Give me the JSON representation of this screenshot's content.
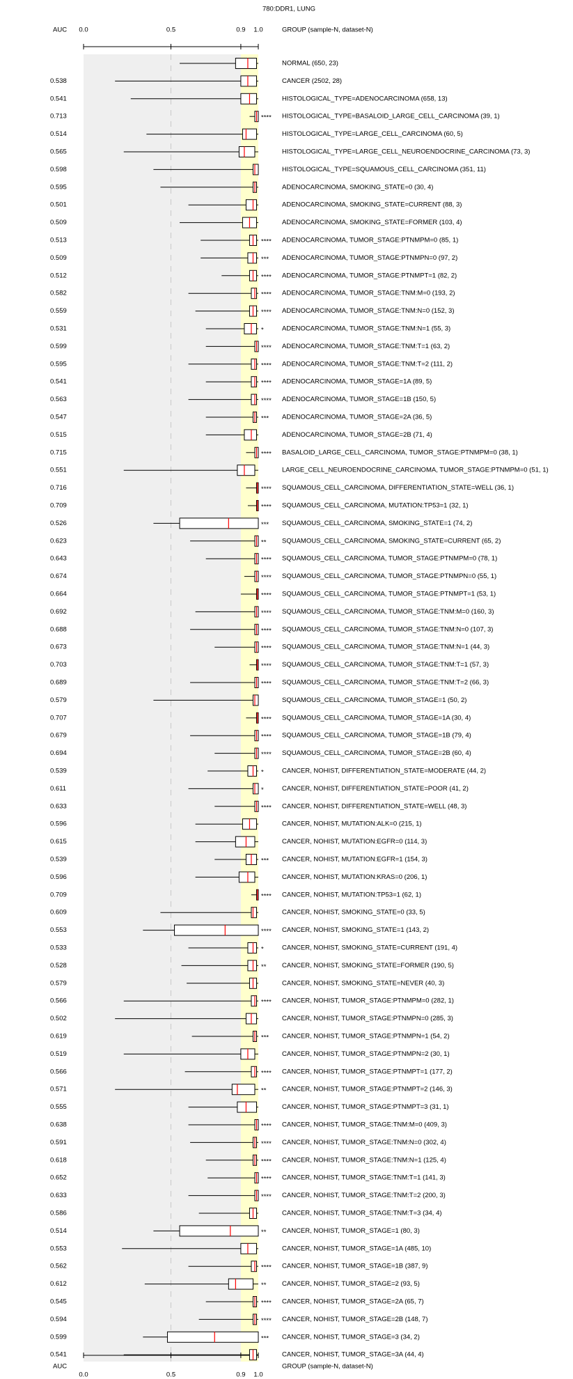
{
  "chart_data": {
    "type": "boxplot",
    "title": "780:DDR1, LUNG",
    "auc_label": "AUC",
    "group_label": "GROUP (sample-N, dataset-N)",
    "xlim": [
      0,
      1
    ],
    "xticks": [
      {
        "value": 0,
        "label": "0.0"
      },
      0.5,
      0.9,
      {
        "value": 1,
        "label": "1.0"
      }
    ],
    "highlight": [
      0.9,
      1
    ],
    "grid_dashed": 0.5,
    "categories": [
      "NORMAL (650, 23)",
      "CANCER (2502, 28)",
      "HISTOLOGICAL_TYPE=ADENOCARCINOMA (658, 13)",
      "HISTOLOGICAL_TYPE=BASALOID_LARGE_CELL_CARCINOMA (39, 1)",
      "HISTOLOGICAL_TYPE=LARGE_CELL_CARCINOMA (60, 5)",
      "HISTOLOGICAL_TYPE=LARGE_CELL_NEUROENDOCRINE_CARCINOMA (73, 3)",
      "HISTOLOGICAL_TYPE=SQUAMOUS_CELL_CARCINOMA (351, 11)",
      "ADENOCARCINOMA, SMOKING_STATE=0 (30, 4)",
      "ADENOCARCINOMA, SMOKING_STATE=CURRENT (88, 3)",
      "ADENOCARCINOMA, SMOKING_STATE=FORMER (103, 4)",
      "ADENOCARCINOMA, TUMOR_STAGE:PTNMPM=0 (85, 1)",
      "ADENOCARCINOMA, TUMOR_STAGE:PTNMPN=0 (97, 2)",
      "ADENOCARCINOMA, TUMOR_STAGE:PTNMPT=1 (82, 2)",
      "ADENOCARCINOMA, TUMOR_STAGE:TNM:M=0 (193, 2)",
      "ADENOCARCINOMA, TUMOR_STAGE:TNM:N=0 (152, 3)",
      "ADENOCARCINOMA, TUMOR_STAGE:TNM:N=1 (55, 3)",
      "ADENOCARCINOMA, TUMOR_STAGE:TNM:T=1 (63, 2)",
      "ADENOCARCINOMA, TUMOR_STAGE:TNM:T=2 (111, 2)",
      "ADENOCARCINOMA, TUMOR_STAGE=1A (89, 5)",
      "ADENOCARCINOMA, TUMOR_STAGE=1B (150, 5)",
      "ADENOCARCINOMA, TUMOR_STAGE=2A (36, 5)",
      "ADENOCARCINOMA, TUMOR_STAGE=2B (71, 4)",
      "BASALOID_LARGE_CELL_CARCINOMA, TUMOR_STAGE:PTNMPM=0 (38, 1)",
      "LARGE_CELL_NEUROENDOCRINE_CARCINOMA, TUMOR_STAGE:PTNMPM=0 (51, 1)",
      "SQUAMOUS_CELL_CARCINOMA, DIFFERENTIATION_STATE=WELL (36, 1)",
      "SQUAMOUS_CELL_CARCINOMA, MUTATION:TP53=1 (32, 1)",
      "SQUAMOUS_CELL_CARCINOMA, SMOKING_STATE=1 (74, 2)",
      "SQUAMOUS_CELL_CARCINOMA, SMOKING_STATE=CURRENT (65, 2)",
      "SQUAMOUS_CELL_CARCINOMA, TUMOR_STAGE:PTNMPM=0 (78, 1)",
      "SQUAMOUS_CELL_CARCINOMA, TUMOR_STAGE:PTNMPN=0 (55, 1)",
      "SQUAMOUS_CELL_CARCINOMA, TUMOR_STAGE:PTNMPT=1 (53, 1)",
      "SQUAMOUS_CELL_CARCINOMA, TUMOR_STAGE:TNM:M=0 (160, 3)",
      "SQUAMOUS_CELL_CARCINOMA, TUMOR_STAGE:TNM:N=0 (107, 3)",
      "SQUAMOUS_CELL_CARCINOMA, TUMOR_STAGE:TNM:N=1 (44, 3)",
      "SQUAMOUS_CELL_CARCINOMA, TUMOR_STAGE:TNM:T=1 (57, 3)",
      "SQUAMOUS_CELL_CARCINOMA, TUMOR_STAGE:TNM:T=2 (66, 3)",
      "SQUAMOUS_CELL_CARCINOMA, TUMOR_STAGE=1 (50, 2)",
      "SQUAMOUS_CELL_CARCINOMA, TUMOR_STAGE=1A (30, 4)",
      "SQUAMOUS_CELL_CARCINOMA, TUMOR_STAGE=1B (79, 4)",
      "SQUAMOUS_CELL_CARCINOMA, TUMOR_STAGE=2B (60, 4)",
      "CANCER, NOHIST, DIFFERENTIATION_STATE=MODERATE (44, 2)",
      "CANCER, NOHIST, DIFFERENTIATION_STATE=POOR (41, 2)",
      "CANCER, NOHIST, DIFFERENTIATION_STATE=WELL (48, 3)",
      "CANCER, NOHIST, MUTATION:ALK=0 (215, 1)",
      "CANCER, NOHIST, MUTATION:EGFR=0 (114, 3)",
      "CANCER, NOHIST, MUTATION:EGFR=1 (154, 3)",
      "CANCER, NOHIST, MUTATION:KRAS=0 (206, 1)",
      "CANCER, NOHIST, MUTATION:TP53=1 (62, 1)",
      "CANCER, NOHIST, SMOKING_STATE=0 (33, 5)",
      "CANCER, NOHIST, SMOKING_STATE=1 (143, 2)",
      "CANCER, NOHIST, SMOKING_STATE=CURRENT (191, 4)",
      "CANCER, NOHIST, SMOKING_STATE=FORMER (190, 5)",
      "CANCER, NOHIST, SMOKING_STATE=NEVER (40, 3)",
      "CANCER, NOHIST, TUMOR_STAGE:PTNMPM=0 (282, 1)",
      "CANCER, NOHIST, TUMOR_STAGE:PTNMPN=0 (285, 3)",
      "CANCER, NOHIST, TUMOR_STAGE:PTNMPN=1 (54, 2)",
      "CANCER, NOHIST, TUMOR_STAGE:PTNMPN=2 (30, 1)",
      "CANCER, NOHIST, TUMOR_STAGE:PTNMPT=1 (177, 2)",
      "CANCER, NOHIST, TUMOR_STAGE:PTNMPT=2 (146, 3)",
      "CANCER, NOHIST, TUMOR_STAGE:PTNMPT=3 (31, 1)",
      "CANCER, NOHIST, TUMOR_STAGE:TNM:M=0 (409, 3)",
      "CANCER, NOHIST, TUMOR_STAGE:TNM:N=0 (302, 4)",
      "CANCER, NOHIST, TUMOR_STAGE:TNM:N=1 (125, 4)",
      "CANCER, NOHIST, TUMOR_STAGE:TNM:T=1 (141, 3)",
      "CANCER, NOHIST, TUMOR_STAGE:TNM:T=2 (200, 3)",
      "CANCER, NOHIST, TUMOR_STAGE:TNM:T=3 (34, 4)",
      "CANCER, NOHIST, TUMOR_STAGE=1 (80, 3)",
      "CANCER, NOHIST, TUMOR_STAGE=1A (485, 10)",
      "CANCER, NOHIST, TUMOR_STAGE=1B (387, 9)",
      "CANCER, NOHIST, TUMOR_STAGE=2 (93, 5)",
      "CANCER, NOHIST, TUMOR_STAGE=2A (65, 7)",
      "CANCER, NOHIST, TUMOR_STAGE=2B (148, 7)",
      "CANCER, NOHIST, TUMOR_STAGE=3 (34, 2)",
      "CANCER, NOHIST, TUMOR_STAGE=3A (44, 4)"
    ],
    "auc": [
      null,
      0.538,
      0.541,
      0.713,
      0.514,
      0.565,
      0.598,
      0.595,
      0.501,
      0.509,
      0.513,
      0.509,
      0.512,
      0.582,
      0.559,
      0.531,
      0.599,
      0.595,
      0.541,
      0.563,
      0.547,
      0.515,
      0.715,
      0.551,
      0.716,
      0.709,
      0.526,
      0.623,
      0.643,
      0.674,
      0.664,
      0.692,
      0.688,
      0.673,
      0.703,
      0.689,
      0.579,
      0.707,
      0.679,
      0.694,
      0.539,
      0.611,
      0.633,
      0.596,
      0.615,
      0.539,
      0.596,
      0.709,
      0.609,
      0.553,
      0.533,
      0.528,
      0.579,
      0.566,
      0.502,
      0.619,
      0.519,
      0.566,
      0.571,
      0.555,
      0.638,
      0.591,
      0.618,
      0.652,
      0.633,
      0.586,
      0.514,
      0.553,
      0.562,
      0.612,
      0.545,
      0.594,
      0.599,
      0.541
    ],
    "significance": [
      null,
      null,
      null,
      "****",
      null,
      null,
      null,
      null,
      null,
      null,
      "****",
      "***",
      "****",
      "****",
      "****",
      "*",
      "****",
      "****",
      "****",
      "****",
      "***",
      null,
      "****",
      null,
      "****",
      "****",
      "***",
      "**",
      "****",
      "****",
      "****",
      "****",
      "****",
      "****",
      "****",
      "****",
      null,
      "****",
      "****",
      "****",
      "*",
      "*",
      "****",
      null,
      null,
      "***",
      null,
      "****",
      null,
      "****",
      "*",
      "**",
      null,
      "****",
      null,
      "***",
      null,
      "****",
      "**",
      null,
      "****",
      "****",
      "****",
      "****",
      "****",
      null,
      "**",
      null,
      "****",
      "**",
      "****",
      "****",
      "***",
      null
    ],
    "colors": [
      "#000000",
      "#000000",
      "#000000",
      "#ff0000",
      "#000000",
      "#000000",
      "#000000",
      "#000000",
      "#000000",
      "#000000",
      "#ff0000",
      "#ff0000",
      "#ff0000",
      "#ff0000",
      "#ff0000",
      "#a52a2a",
      "#ff0000",
      "#ff0000",
      "#ff0000",
      "#ff0000",
      "#ff0000",
      "#000000",
      "#ff0000",
      "#000000",
      "#ff0000",
      "#ff0000",
      "#0000ff",
      "#a52a2a",
      "#ff0000",
      "#ff0000",
      "#ff0000",
      "#ff0000",
      "#ff0000",
      "#ff0000",
      "#ff0000",
      "#ff0000",
      "#000000",
      "#ff0000",
      "#ff0000",
      "#ff0000",
      "#a52a2a",
      "#a52a2a",
      "#ff0000",
      "#000000",
      "#000000",
      "#ff0000",
      "#000000",
      "#ff0000",
      "#000000",
      "#0000ff",
      "#a52a2a",
      "#a52a2a",
      "#000000",
      "#ff0000",
      "#000000",
      "#ff0000",
      "#000000",
      "#ff0000",
      "#000080",
      "#000000",
      "#ff0000",
      "#ff0000",
      "#ff0000",
      "#ff0000",
      "#ff0000",
      "#000000",
      "#000080",
      "#000000",
      "#ff0000",
      "#000080",
      "#ff0000",
      "#ff0000",
      "#0000ff",
      "#000000"
    ],
    "values": [
      [
        0.55,
        0.87,
        0.94,
        0.99,
        1.0
      ],
      [
        0.18,
        0.9,
        0.94,
        0.99,
        1.0
      ],
      [
        0.27,
        0.9,
        0.95,
        0.99,
        1.0
      ],
      [
        0.95,
        0.98,
        0.99,
        1.0,
        1.0
      ],
      [
        0.36,
        0.91,
        0.93,
        0.99,
        1.0
      ],
      [
        0.23,
        0.89,
        0.92,
        0.98,
        1.0
      ],
      [
        0.4,
        0.97,
        0.98,
        1.0,
        1.0
      ],
      [
        0.44,
        0.97,
        0.98,
        0.99,
        1.0
      ],
      [
        0.6,
        0.93,
        0.97,
        0.99,
        1.0
      ],
      [
        0.55,
        0.91,
        0.95,
        0.99,
        1.0
      ],
      [
        0.67,
        0.95,
        0.97,
        0.99,
        1.0
      ],
      [
        0.67,
        0.94,
        0.97,
        0.99,
        1.0
      ],
      [
        0.79,
        0.95,
        0.97,
        0.99,
        1.0
      ],
      [
        0.6,
        0.96,
        0.98,
        0.99,
        1.0
      ],
      [
        0.64,
        0.95,
        0.97,
        0.99,
        1.0
      ],
      [
        0.7,
        0.92,
        0.96,
        0.99,
        1.0
      ],
      [
        0.7,
        0.98,
        0.99,
        1.0,
        1.0
      ],
      [
        0.6,
        0.96,
        0.98,
        0.99,
        1.0
      ],
      [
        0.7,
        0.96,
        0.98,
        0.99,
        1.0
      ],
      [
        0.6,
        0.96,
        0.98,
        0.99,
        1.0
      ],
      [
        0.7,
        0.97,
        0.98,
        0.99,
        1.0
      ],
      [
        0.7,
        0.92,
        0.96,
        0.99,
        1.0
      ],
      [
        0.93,
        0.98,
        0.99,
        1.0,
        1.0
      ],
      [
        0.23,
        0.88,
        0.92,
        0.98,
        1.0
      ],
      [
        0.93,
        0.99,
        0.995,
        1.0,
        1.0
      ],
      [
        0.94,
        0.99,
        0.995,
        1.0,
        1.0
      ],
      [
        0.4,
        0.55,
        0.83,
        1.0,
        1.0
      ],
      [
        0.61,
        0.98,
        0.99,
        1.0,
        1.0
      ],
      [
        0.7,
        0.98,
        0.99,
        1.0,
        1.0
      ],
      [
        0.92,
        0.98,
        0.99,
        1.0,
        1.0
      ],
      [
        0.9,
        0.99,
        0.995,
        1.0,
        1.0
      ],
      [
        0.64,
        0.98,
        0.99,
        1.0,
        1.0
      ],
      [
        0.61,
        0.98,
        0.99,
        1.0,
        1.0
      ],
      [
        0.75,
        0.98,
        0.99,
        1.0,
        1.0
      ],
      [
        0.95,
        0.99,
        0.995,
        1.0,
        1.0
      ],
      [
        0.61,
        0.98,
        0.99,
        1.0,
        1.0
      ],
      [
        0.4,
        0.97,
        0.98,
        1.0,
        1.0
      ],
      [
        0.93,
        0.99,
        0.995,
        1.0,
        1.0
      ],
      [
        0.61,
        0.98,
        0.99,
        1.0,
        1.0
      ],
      [
        0.75,
        0.98,
        0.99,
        1.0,
        1.0
      ],
      [
        0.71,
        0.94,
        0.97,
        0.99,
        1.0
      ],
      [
        0.6,
        0.97,
        0.98,
        1.0,
        1.0
      ],
      [
        0.75,
        0.98,
        0.99,
        1.0,
        1.0
      ],
      [
        0.64,
        0.91,
        0.95,
        0.99,
        1.0
      ],
      [
        0.64,
        0.87,
        0.93,
        0.98,
        1.0
      ],
      [
        0.75,
        0.93,
        0.96,
        0.99,
        1.0
      ],
      [
        0.64,
        0.89,
        0.94,
        0.98,
        1.0
      ],
      [
        0.96,
        0.99,
        0.995,
        1.0,
        1.0
      ],
      [
        0.44,
        0.96,
        0.97,
        0.99,
        1.0
      ],
      [
        0.34,
        0.52,
        0.81,
        1.0,
        1.0
      ],
      [
        0.6,
        0.94,
        0.97,
        0.99,
        1.0
      ],
      [
        0.56,
        0.94,
        0.97,
        0.99,
        1.0
      ],
      [
        0.59,
        0.95,
        0.97,
        0.99,
        1.0
      ],
      [
        0.23,
        0.96,
        0.98,
        0.99,
        1.0
      ],
      [
        0.18,
        0.93,
        0.96,
        0.99,
        1.0
      ],
      [
        0.62,
        0.97,
        0.98,
        0.99,
        1.0
      ],
      [
        0.23,
        0.9,
        0.94,
        0.98,
        1.0
      ],
      [
        0.58,
        0.96,
        0.98,
        0.99,
        1.0
      ],
      [
        0.18,
        0.85,
        0.88,
        0.98,
        1.0
      ],
      [
        0.6,
        0.88,
        0.93,
        0.99,
        1.0
      ],
      [
        0.6,
        0.98,
        0.99,
        1.0,
        1.0
      ],
      [
        0.61,
        0.97,
        0.98,
        0.99,
        1.0
      ],
      [
        0.7,
        0.97,
        0.98,
        0.99,
        1.0
      ],
      [
        0.71,
        0.98,
        0.99,
        1.0,
        1.0
      ],
      [
        0.6,
        0.98,
        0.99,
        1.0,
        1.0
      ],
      [
        0.66,
        0.95,
        0.97,
        0.99,
        1.0
      ],
      [
        0.4,
        0.55,
        0.84,
        1.0,
        1.0
      ],
      [
        0.22,
        0.9,
        0.94,
        0.99,
        1.0
      ],
      [
        0.6,
        0.96,
        0.98,
        0.99,
        1.0
      ],
      [
        0.35,
        0.83,
        0.87,
        0.97,
        1.0
      ],
      [
        0.7,
        0.97,
        0.98,
        0.99,
        1.0
      ],
      [
        0.66,
        0.97,
        0.98,
        0.99,
        1.0
      ],
      [
        0.34,
        0.48,
        0.75,
        1.0,
        1.0
      ],
      [
        0.23,
        0.95,
        0.97,
        0.99,
        1.0
      ]
    ]
  }
}
